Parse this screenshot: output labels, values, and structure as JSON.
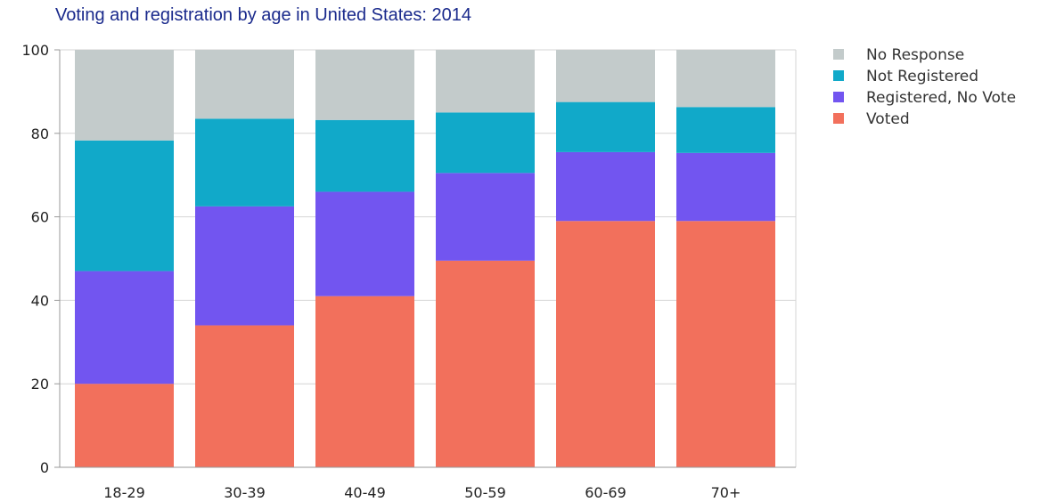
{
  "chart_data": {
    "type": "bar",
    "stacked": true,
    "title": "Voting and registration by age in United States: 2014",
    "categories": [
      "18-29",
      "30-39",
      "40-49",
      "50-59",
      "60-69",
      "70+"
    ],
    "series": [
      {
        "name": "Voted",
        "color": "#f2705c",
        "values": [
          20,
          34,
          41,
          49.5,
          59,
          59
        ]
      },
      {
        "name": "Registered, No Vote",
        "color": "#7255f0",
        "values": [
          27,
          28.5,
          25,
          21,
          16.5,
          16.3
        ]
      },
      {
        "name": "Not Registered",
        "color": "#11a9c9",
        "values": [
          31.3,
          21,
          17.2,
          14.5,
          12,
          11
        ]
      },
      {
        "name": "No Response",
        "color": "#c3cbcb",
        "values": [
          21.7,
          16.5,
          16.8,
          15,
          12.5,
          13.7
        ]
      }
    ],
    "legend_order": [
      "No Response",
      "Not Registered",
      "Registered, No Vote",
      "Voted"
    ],
    "ylim": [
      0,
      100
    ],
    "yticks": [
      0,
      20,
      40,
      60,
      80,
      100
    ],
    "xlabel": "",
    "ylabel": "",
    "grid": true,
    "legend_position": "top-right"
  }
}
